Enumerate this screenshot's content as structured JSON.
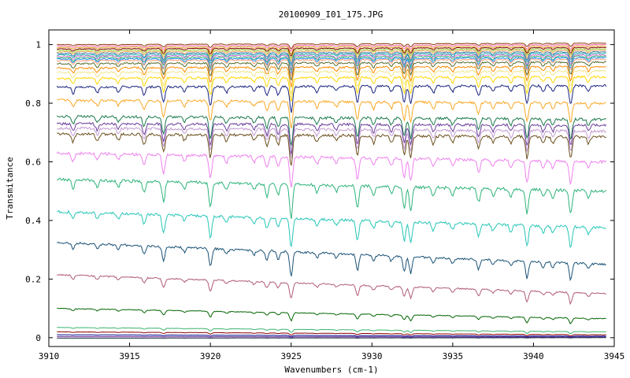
{
  "chart_data": {
    "type": "line",
    "title": "20100909_I01_175.JPG",
    "xlabel": "Wavenumbers (cm-1)",
    "ylabel": "Transmitance",
    "xlim": [
      3910,
      3945
    ],
    "ylim": [
      -0.03,
      1.05
    ],
    "xticks": [
      3910,
      3915,
      3920,
      3925,
      3930,
      3935,
      3940,
      3945
    ],
    "yticks": [
      0,
      0.2,
      0.4,
      0.6,
      0.8,
      1
    ],
    "grid": false,
    "legend": "none",
    "x_start": 3910.5,
    "x_end": 3944.5,
    "absorption_lines": [
      {
        "x": 3911.5,
        "depth": 0.35
      },
      {
        "x": 3913.0,
        "depth": 0.3
      },
      {
        "x": 3914.3,
        "depth": 0.25
      },
      {
        "x": 3915.9,
        "depth": 0.45
      },
      {
        "x": 3917.1,
        "depth": 0.8
      },
      {
        "x": 3918.4,
        "depth": 0.25
      },
      {
        "x": 3920.0,
        "depth": 1.0
      },
      {
        "x": 3921.0,
        "depth": 0.3
      },
      {
        "x": 3922.7,
        "depth": 0.25
      },
      {
        "x": 3923.5,
        "depth": 0.5
      },
      {
        "x": 3924.2,
        "depth": 0.45
      },
      {
        "x": 3925.0,
        "depth": 1.35
      },
      {
        "x": 3926.6,
        "depth": 0.3
      },
      {
        "x": 3927.8,
        "depth": 0.25
      },
      {
        "x": 3929.1,
        "depth": 0.9
      },
      {
        "x": 3930.1,
        "depth": 0.35
      },
      {
        "x": 3931.2,
        "depth": 0.3
      },
      {
        "x": 3932.0,
        "depth": 0.85
      },
      {
        "x": 3932.4,
        "depth": 0.95
      },
      {
        "x": 3933.8,
        "depth": 0.35
      },
      {
        "x": 3935.0,
        "depth": 0.3
      },
      {
        "x": 3936.6,
        "depth": 0.55
      },
      {
        "x": 3937.5,
        "depth": 0.3
      },
      {
        "x": 3938.6,
        "depth": 0.3
      },
      {
        "x": 3939.6,
        "depth": 0.95
      },
      {
        "x": 3940.6,
        "depth": 0.3
      },
      {
        "x": 3941.2,
        "depth": 0.3
      },
      {
        "x": 3942.3,
        "depth": 0.95
      },
      {
        "x": 3943.4,
        "depth": 0.3
      }
    ],
    "series": [
      {
        "baseline": 1.0,
        "end": 1.005,
        "depthScale": 0.012,
        "color": "#8b4513"
      },
      {
        "baseline": 0.995,
        "end": 1.0,
        "depthScale": 0.015,
        "color": "#ff69b4"
      },
      {
        "baseline": 0.99,
        "end": 0.995,
        "depthScale": 0.018,
        "color": "#daa520"
      },
      {
        "baseline": 0.985,
        "end": 0.99,
        "depthScale": 0.02,
        "color": "#800000"
      },
      {
        "baseline": 0.98,
        "end": 0.985,
        "depthScale": 0.022,
        "color": "#9acd32"
      },
      {
        "baseline": 0.975,
        "end": 0.98,
        "depthScale": 0.025,
        "color": "#f4a460"
      },
      {
        "baseline": 0.97,
        "end": 0.975,
        "depthScale": 0.028,
        "color": "#4682b4"
      },
      {
        "baseline": 0.965,
        "end": 0.97,
        "depthScale": 0.03,
        "color": "#20b2aa"
      },
      {
        "baseline": 0.96,
        "end": 0.965,
        "depthScale": 0.033,
        "color": "#da70d6"
      },
      {
        "baseline": 0.955,
        "end": 0.96,
        "depthScale": 0.035,
        "color": "#3cb371"
      },
      {
        "baseline": 0.95,
        "end": 0.955,
        "depthScale": 0.038,
        "color": "#1e90ff"
      },
      {
        "baseline": 0.945,
        "end": 0.95,
        "depthScale": 0.04,
        "color": "#ffa07a"
      },
      {
        "baseline": 0.935,
        "end": 0.94,
        "depthScale": 0.045,
        "color": "#556b2f"
      },
      {
        "baseline": 0.92,
        "end": 0.925,
        "depthScale": 0.05,
        "color": "#ff8c00"
      },
      {
        "baseline": 0.905,
        "end": 0.91,
        "depthScale": 0.055,
        "color": "#f0e68c"
      },
      {
        "baseline": 0.885,
        "end": 0.89,
        "depthScale": 0.06,
        "color": "#ffd700"
      },
      {
        "baseline": 0.855,
        "end": 0.86,
        "depthScale": 0.065,
        "color": "#1a237e"
      },
      {
        "baseline": 0.81,
        "end": 0.8,
        "depthScale": 0.07,
        "color": "#f9a825"
      },
      {
        "baseline": 0.755,
        "end": 0.745,
        "depthScale": 0.072,
        "color": "#1b7a4d"
      },
      {
        "baseline": 0.73,
        "end": 0.725,
        "depthScale": 0.075,
        "color": "#6a3d9a"
      },
      {
        "baseline": 0.715,
        "end": 0.705,
        "depthScale": 0.075,
        "color": "#c39bd3"
      },
      {
        "baseline": 0.695,
        "end": 0.685,
        "depthScale": 0.078,
        "color": "#6b4f1d"
      },
      {
        "baseline": 0.63,
        "end": 0.6,
        "depthScale": 0.08,
        "color": "#ee82ee"
      },
      {
        "baseline": 0.54,
        "end": 0.5,
        "depthScale": 0.085,
        "color": "#2db37a"
      },
      {
        "baseline": 0.43,
        "end": 0.375,
        "depthScale": 0.075,
        "color": "#26c6b7"
      },
      {
        "baseline": 0.325,
        "end": 0.25,
        "depthScale": 0.06,
        "color": "#1a5276"
      },
      {
        "baseline": 0.215,
        "end": 0.15,
        "depthScale": 0.04,
        "color": "#b05a7a"
      },
      {
        "baseline": 0.1,
        "end": 0.065,
        "depthScale": 0.02,
        "color": "#006400"
      },
      {
        "baseline": 0.035,
        "end": 0.02,
        "depthScale": 0.008,
        "color": "#3cb371"
      },
      {
        "baseline": 0.02,
        "end": 0.01,
        "depthScale": 0.005,
        "color": "#8b0000"
      },
      {
        "baseline": 0.01,
        "end": 0.005,
        "depthScale": 0.003,
        "color": "#00008b"
      },
      {
        "baseline": 0.003,
        "end": 0.002,
        "depthScale": 0.001,
        "color": "#4b0082"
      },
      {
        "baseline": -0.002,
        "end": 0.0,
        "depthScale": 0.001,
        "color": "#2f4f4f"
      }
    ]
  }
}
